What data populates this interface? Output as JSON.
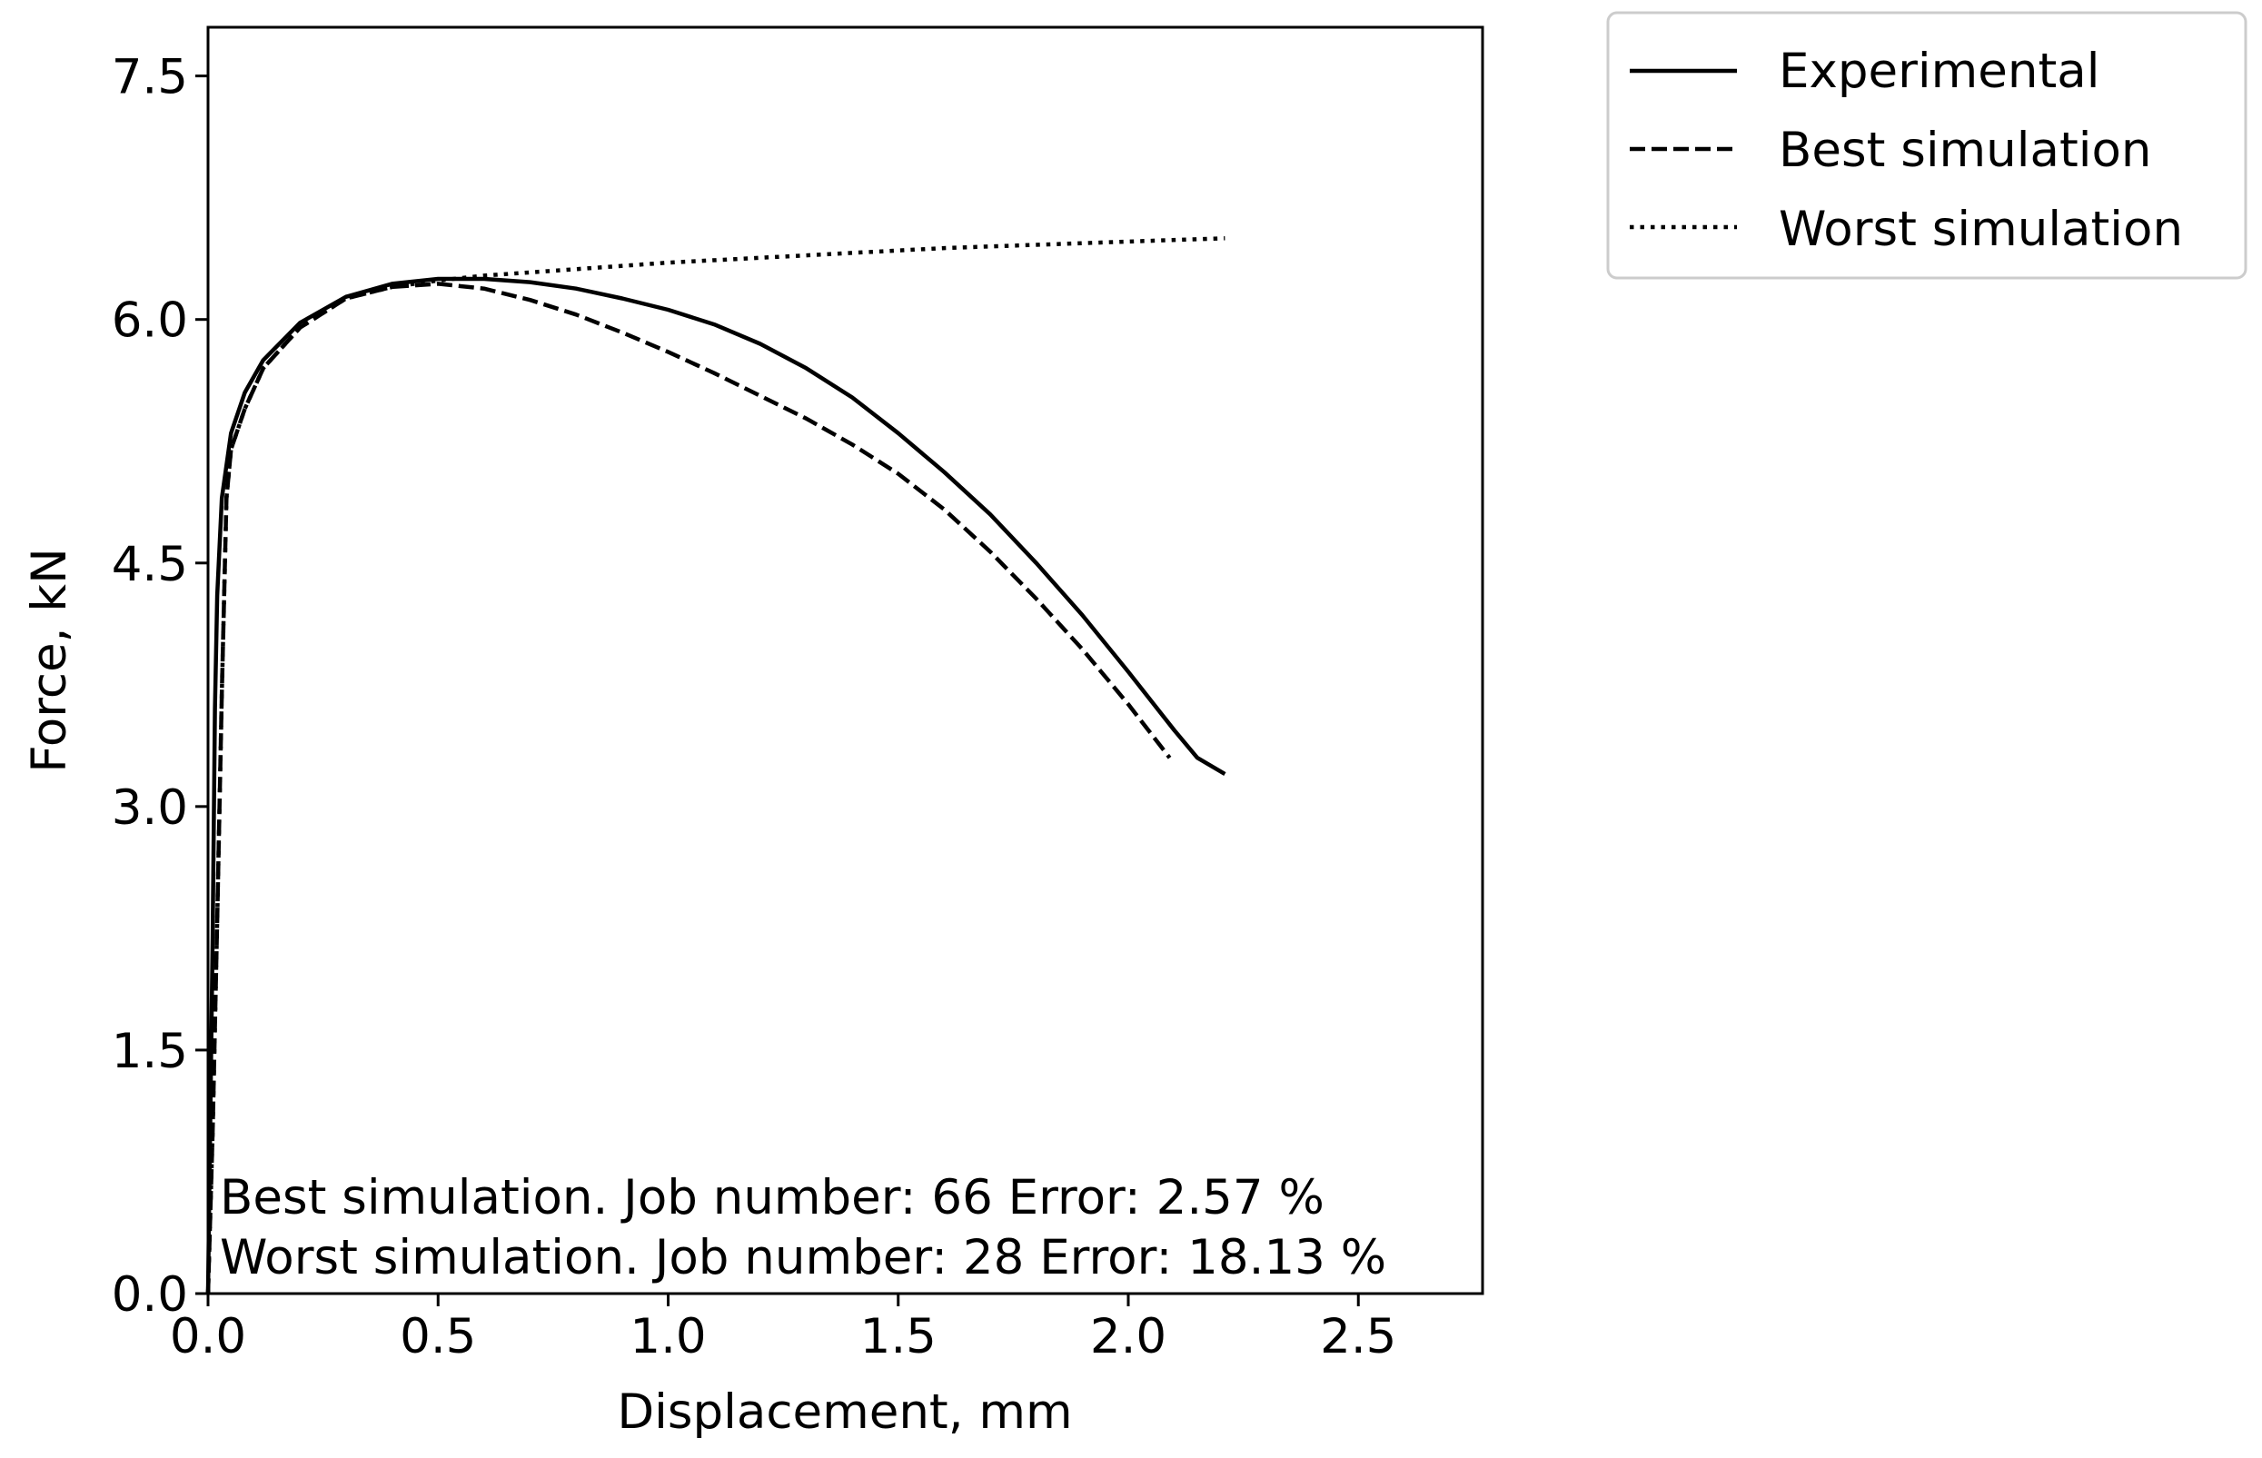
{
  "chart_data": {
    "type": "line",
    "title": "",
    "xlabel": "Displacement, mm",
    "ylabel": "Force, kN",
    "xlim": [
      0,
      2.77
    ],
    "ylim": [
      0,
      7.8
    ],
    "xticks": [
      0.0,
      0.5,
      1.0,
      1.5,
      2.0,
      2.5
    ],
    "xtick_labels": [
      "0.0",
      "0.5",
      "1.0",
      "1.5",
      "2.0",
      "2.5"
    ],
    "yticks": [
      0.0,
      1.5,
      3.0,
      4.5,
      6.0,
      7.5
    ],
    "ytick_labels": [
      "0.0",
      "1.5",
      "3.0",
      "4.5",
      "6.0",
      "7.5"
    ],
    "grid": false,
    "legend_position": "outside-top-right",
    "series": [
      {
        "name": "Experimental",
        "style": "solid",
        "color": "#000000",
        "x": [
          0.0,
          0.01,
          0.015,
          0.02,
          0.03,
          0.05,
          0.08,
          0.12,
          0.2,
          0.3,
          0.4,
          0.5,
          0.6,
          0.7,
          0.8,
          0.9,
          1.0,
          1.1,
          1.2,
          1.3,
          1.4,
          1.5,
          1.6,
          1.7,
          1.8,
          1.9,
          2.0,
          2.1,
          2.15,
          2.21
        ],
        "y": [
          0.0,
          2.2,
          3.6,
          4.3,
          4.9,
          5.3,
          5.55,
          5.75,
          5.98,
          6.14,
          6.22,
          6.25,
          6.25,
          6.23,
          6.19,
          6.13,
          6.06,
          5.97,
          5.85,
          5.7,
          5.52,
          5.3,
          5.06,
          4.8,
          4.5,
          4.18,
          3.83,
          3.47,
          3.3,
          3.2
        ]
      },
      {
        "name": "Best simulation",
        "style": "dashed",
        "color": "#000000",
        "x": [
          0.0,
          0.01,
          0.02,
          0.03,
          0.04,
          0.05,
          0.08,
          0.12,
          0.2,
          0.3,
          0.4,
          0.5,
          0.6,
          0.7,
          0.8,
          0.9,
          1.0,
          1.1,
          1.2,
          1.3,
          1.4,
          1.5,
          1.6,
          1.7,
          1.8,
          1.9,
          2.0,
          2.09,
          2.09
        ],
        "y": [
          0.0,
          1.0,
          2.3,
          3.7,
          4.9,
          5.2,
          5.45,
          5.7,
          5.95,
          6.13,
          6.2,
          6.22,
          6.19,
          6.12,
          6.03,
          5.92,
          5.8,
          5.67,
          5.53,
          5.39,
          5.23,
          5.05,
          4.83,
          4.57,
          4.28,
          3.97,
          3.63,
          3.3,
          3.3
        ]
      },
      {
        "name": "Worst simulation",
        "style": "dotted",
        "color": "#000000",
        "x": [
          0.0,
          0.01,
          0.02,
          0.03,
          0.04,
          0.05,
          0.08,
          0.12,
          0.2,
          0.3,
          0.4,
          0.5,
          0.6,
          0.8,
          1.0,
          1.2,
          1.4,
          1.6,
          1.8,
          2.0,
          2.21
        ],
        "y": [
          0.0,
          1.0,
          2.3,
          3.7,
          4.9,
          5.2,
          5.45,
          5.7,
          5.95,
          6.13,
          6.2,
          6.24,
          6.27,
          6.31,
          6.35,
          6.38,
          6.41,
          6.44,
          6.46,
          6.48,
          6.5
        ]
      }
    ],
    "annotations": [
      "Best simulation. Job number: 66 Error: 2.57 %",
      "Worst simulation. Job number: 28 Error: 18.13 %"
    ]
  }
}
